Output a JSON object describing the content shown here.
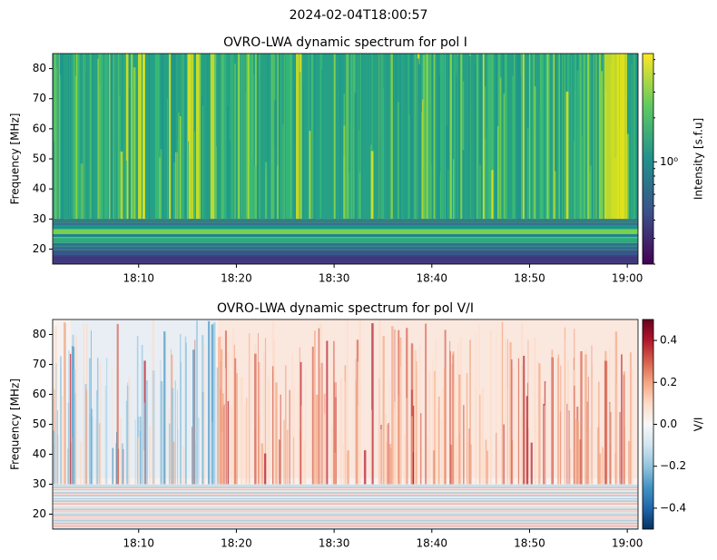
{
  "title": "2024-02-04T18:00:57",
  "chart_data": [
    {
      "type": "heatmap",
      "title": "OVRO-LWA dynamic spectrum for pol I",
      "ylabel": "Frequency [MHz]",
      "colorbar_label": "Intensity [s.f.u]",
      "colormap": "viridis",
      "color_scale": "log",
      "xlim": [
        "2024-02-04T18:01:12",
        "2024-02-04T19:01:06"
      ],
      "xticks": [
        {
          "value": "2024-02-04T18:10:00",
          "label": "18:10"
        },
        {
          "value": "2024-02-04T18:20:00",
          "label": "18:20"
        },
        {
          "value": "2024-02-04T18:30:00",
          "label": "18:30"
        },
        {
          "value": "2024-02-04T18:40:00",
          "label": "18:40"
        },
        {
          "value": "2024-02-04T18:50:00",
          "label": "18:50"
        },
        {
          "value": "2024-02-04T19:00:00",
          "label": "19:00"
        }
      ],
      "ylim": [
        15,
        85
      ],
      "yticks": [
        20,
        30,
        40,
        50,
        60,
        70,
        80
      ],
      "clim": [
        0.2,
        5.5
      ],
      "cticks": [
        {
          "value": 1,
          "label": "10⁰"
        }
      ],
      "cminor_ticks": [
        0.2,
        0.3,
        0.4,
        0.5,
        0.6,
        0.7,
        0.8,
        0.9,
        2,
        3,
        4,
        5
      ]
    },
    {
      "type": "heatmap",
      "title": "OVRO-LWA dynamic spectrum for pol V/I",
      "ylabel": "Frequency [MHz]",
      "colorbar_label": "V/I",
      "colormap": "RdBu_r",
      "color_scale": "linear",
      "xlim": [
        "2024-02-04T18:01:12",
        "2024-02-04T19:01:06"
      ],
      "xticks": [
        {
          "value": "2024-02-04T18:10:00",
          "label": "18:10"
        },
        {
          "value": "2024-02-04T18:20:00",
          "label": "18:20"
        },
        {
          "value": "2024-02-04T18:30:00",
          "label": "18:30"
        },
        {
          "value": "2024-02-04T18:40:00",
          "label": "18:40"
        },
        {
          "value": "2024-02-04T18:50:00",
          "label": "18:50"
        },
        {
          "value": "2024-02-04T19:00:00",
          "label": "19:00"
        }
      ],
      "ylim": [
        15,
        85
      ],
      "yticks": [
        20,
        30,
        40,
        50,
        60,
        70,
        80
      ],
      "clim": [
        -0.5,
        0.5
      ],
      "cticks": [
        {
          "value": -0.4,
          "label": "−0.4"
        },
        {
          "value": -0.2,
          "label": "−0.2"
        },
        {
          "value": 0,
          "label": "0.0"
        },
        0.2,
        0.4
      ]
    }
  ]
}
